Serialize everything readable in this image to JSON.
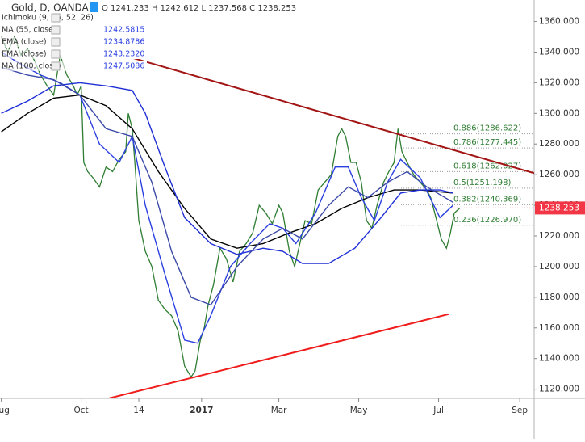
{
  "chart_data": {
    "type": "line",
    "title": "Gold, D, OANDA",
    "ohlc_text": "O 1241.233 H 1242.612 L 1237.568 C 1238.253",
    "indicator_labels": [
      {
        "name": "Ichimoku (9, 26, 52, 26)"
      },
      {
        "name": "MA (55, close)",
        "value": "1242.5815"
      },
      {
        "name": "EMA (close)",
        "value": "1234.8786"
      },
      {
        "name": "EMA (close)",
        "value": "1243.2320"
      },
      {
        "name": "MA (100, close)",
        "value": "1247.5086"
      }
    ],
    "last_price": {
      "value": 1238.253,
      "label": "1238.253",
      "color": "#f23645"
    },
    "xlim": [
      -1,
      407
    ],
    "xticks": [
      {
        "value": 0,
        "label": "Aug"
      },
      {
        "value": 61,
        "label": "Oct"
      },
      {
        "value": 105,
        "label": "14"
      },
      {
        "value": 153,
        "label": "2017"
      },
      {
        "value": 212,
        "label": "Mar"
      },
      {
        "value": 273,
        "label": "May"
      },
      {
        "value": 334,
        "label": "Jul"
      },
      {
        "value": 396,
        "label": "Sep"
      }
    ],
    "ylim": [
      1114,
      1374
    ],
    "yticks": [
      {
        "value": 1120,
        "label": "1120.000"
      },
      {
        "value": 1140,
        "label": "1140.000"
      },
      {
        "value": 1160,
        "label": "1160.000"
      },
      {
        "value": 1180,
        "label": "1180.000"
      },
      {
        "value": 1200,
        "label": "1200.000"
      },
      {
        "value": 1220,
        "label": "1220.000"
      },
      {
        "value": 1240,
        "label": "1240.000"
      },
      {
        "value": 1260,
        "label": "1260.000"
      },
      {
        "value": 1280,
        "label": "1280.000"
      },
      {
        "value": 1300,
        "label": "1300.000"
      },
      {
        "value": 1320,
        "label": "1320.000"
      },
      {
        "value": 1340,
        "label": "1340.000"
      },
      {
        "value": 1360,
        "label": "1360.000"
      }
    ],
    "series": [
      {
        "name": "price",
        "color": "#2e7d32",
        "x": [
          0,
          5,
          10,
          15,
          20,
          25,
          30,
          35,
          40,
          45,
          50,
          55,
          58,
          61,
          63,
          66,
          70,
          75,
          80,
          85,
          90,
          95,
          97,
          100,
          102,
          105,
          110,
          115,
          120,
          125,
          130,
          135,
          140,
          145,
          148,
          152,
          155,
          158,
          162,
          167,
          172,
          177,
          182,
          187,
          192,
          197,
          202,
          207,
          212,
          215,
          220,
          224,
          228,
          232,
          237,
          242,
          247,
          252,
          257,
          260,
          263,
          267,
          271,
          275,
          279,
          283,
          287,
          292,
          296,
          300,
          303,
          306,
          310,
          315,
          320,
          325,
          328,
          332,
          336,
          340,
          343,
          346,
          350
        ],
        "values": [
          1350,
          1340,
          1350,
          1338,
          1342,
          1335,
          1325,
          1318,
          1312,
          1338,
          1325,
          1318,
          1312,
          1318,
          1268,
          1262,
          1258,
          1252,
          1265,
          1262,
          1270,
          1275,
          1300,
          1290,
          1268,
          1230,
          1210,
          1200,
          1178,
          1172,
          1168,
          1158,
          1135,
          1128,
          1132,
          1152,
          1160,
          1175,
          1188,
          1212,
          1205,
          1190,
          1210,
          1215,
          1222,
          1240,
          1235,
          1228,
          1240,
          1235,
          1210,
          1200,
          1215,
          1230,
          1228,
          1250,
          1255,
          1260,
          1285,
          1290,
          1285,
          1268,
          1268,
          1255,
          1230,
          1225,
          1240,
          1255,
          1262,
          1268,
          1290,
          1275,
          1268,
          1260,
          1255,
          1250,
          1245,
          1232,
          1218,
          1212,
          1222,
          1235,
          1238
        ]
      },
      {
        "name": "MA (100, close)",
        "color": "#000000",
        "x": [
          0,
          20,
          40,
          60,
          80,
          100,
          120,
          140,
          160,
          180,
          200,
          220,
          240,
          260,
          280,
          300,
          320,
          345
        ],
        "values": [
          1288,
          1300,
          1310,
          1312,
          1305,
          1290,
          1262,
          1238,
          1218,
          1212,
          1215,
          1222,
          1228,
          1238,
          1245,
          1250,
          1250,
          1248
        ]
      },
      {
        "name": "MA (55, close)",
        "color": "#1e2fd6",
        "x": [
          0,
          20,
          40,
          60,
          80,
          100,
          110,
          125,
          140,
          160,
          180,
          200,
          215,
          230,
          250,
          270,
          290,
          305,
          320,
          335,
          345
        ],
        "values": [
          1300,
          1308,
          1318,
          1320,
          1318,
          1315,
          1300,
          1265,
          1232,
          1215,
          1208,
          1212,
          1210,
          1202,
          1202,
          1212,
          1232,
          1248,
          1250,
          1250,
          1248
        ]
      },
      {
        "name": "EMA (close)",
        "color": "#2a3fe0",
        "x": [
          0,
          15,
          30,
          45,
          60,
          75,
          90,
          100,
          110,
          125,
          140,
          150,
          160,
          175,
          190,
          205,
          215,
          225,
          240,
          255,
          265,
          275,
          285,
          295,
          305,
          320,
          335,
          345
        ],
        "values": [
          1340,
          1332,
          1325,
          1320,
          1312,
          1280,
          1268,
          1285,
          1240,
          1195,
          1152,
          1150,
          1168,
          1200,
          1215,
          1228,
          1225,
          1215,
          1235,
          1265,
          1265,
          1245,
          1230,
          1255,
          1270,
          1258,
          1232,
          1240
        ]
      },
      {
        "name": "EMA (close)",
        "color": "#3b4aa8",
        "x": [
          0,
          20,
          40,
          60,
          80,
          100,
          115,
          130,
          145,
          160,
          180,
          200,
          215,
          230,
          250,
          265,
          280,
          295,
          310,
          325,
          345
        ],
        "values": [
          1330,
          1325,
          1322,
          1312,
          1290,
          1285,
          1255,
          1210,
          1180,
          1175,
          1200,
          1218,
          1225,
          1218,
          1240,
          1252,
          1245,
          1255,
          1262,
          1252,
          1242
        ]
      }
    ],
    "trendlines": [
      {
        "color": "#a31515",
        "x": [
          97,
          407
        ],
        "values": [
          1337,
          1261
        ]
      },
      {
        "color": "#f01c1c",
        "x": [
          63,
          342
        ],
        "values": [
          1110,
          1169
        ]
      }
    ],
    "fib_levels": [
      {
        "label": "0.886(1286.622)",
        "value": 1286.622
      },
      {
        "label": "0.786(1277.445)",
        "value": 1277.445
      },
      {
        "label": "0.618(1262.027)",
        "value": 1262.027
      },
      {
        "label": "0.5(1251.198)",
        "value": 1251.198
      },
      {
        "label": "0.382(1240.369)",
        "value": 1240.369
      },
      {
        "label": "0.236(1226.970)",
        "value": 1226.97
      }
    ],
    "fib_color": "#2e7d32"
  }
}
